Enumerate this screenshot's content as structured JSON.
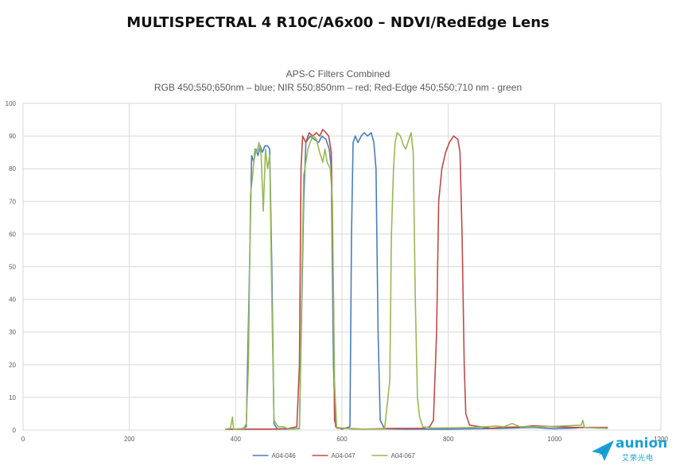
{
  "header": {
    "title": "MULTISPECTRAL 4 R10C/A6x00 – NDVI/RedEdge Lens"
  },
  "logo": {
    "word": "aunion",
    "sub": "艾荣光电",
    "color": "#1aa0d6"
  },
  "chart_data": {
    "type": "line",
    "title": "APS-C Filters Combined",
    "subtitle": "RGB 450;550;650nm – blue; NIR 550;850nm – red; Red-Edge 450;550;710 nm - green",
    "xlabel": "",
    "ylabel": "",
    "xlim": [
      0,
      1200
    ],
    "ylim": [
      0,
      100
    ],
    "x_ticks": [
      0,
      200,
      400,
      600,
      800,
      1000,
      1200
    ],
    "y_ticks": [
      0,
      10,
      20,
      30,
      40,
      50,
      60,
      70,
      80,
      90,
      100
    ],
    "grid": true,
    "legend_position": "bottom",
    "series": [
      {
        "name": "A04-046",
        "color": "#4a7ebb",
        "points": [
          [
            380,
            0.3
          ],
          [
            410,
            0.3
          ],
          [
            420,
            1
          ],
          [
            425,
            40
          ],
          [
            430,
            84
          ],
          [
            434,
            82
          ],
          [
            438,
            86
          ],
          [
            442,
            84
          ],
          [
            446,
            87
          ],
          [
            450,
            85
          ],
          [
            455,
            87
          ],
          [
            460,
            87
          ],
          [
            464,
            86
          ],
          [
            468,
            50
          ],
          [
            472,
            2
          ],
          [
            478,
            0.4
          ],
          [
            500,
            0.3
          ],
          [
            520,
            0.5
          ],
          [
            528,
            70
          ],
          [
            532,
            88
          ],
          [
            540,
            90
          ],
          [
            548,
            89
          ],
          [
            556,
            88
          ],
          [
            562,
            90
          ],
          [
            570,
            89
          ],
          [
            576,
            86
          ],
          [
            580,
            80
          ],
          [
            584,
            20
          ],
          [
            588,
            1
          ],
          [
            600,
            0.3
          ],
          [
            615,
            1
          ],
          [
            618,
            60
          ],
          [
            621,
            88
          ],
          [
            625,
            90
          ],
          [
            630,
            88
          ],
          [
            636,
            90
          ],
          [
            642,
            91
          ],
          [
            648,
            90
          ],
          [
            655,
            91
          ],
          [
            660,
            88
          ],
          [
            664,
            80
          ],
          [
            668,
            30
          ],
          [
            672,
            3
          ],
          [
            680,
            0.4
          ],
          [
            720,
            0.3
          ],
          [
            800,
            0.3
          ],
          [
            900,
            0.5
          ],
          [
            960,
            0.8
          ],
          [
            1000,
            0.4
          ],
          [
            1040,
            0.6
          ],
          [
            1050,
            0.8
          ],
          [
            1100,
            0.5
          ]
        ]
      },
      {
        "name": "A04-047",
        "color": "#be4b48",
        "points": [
          [
            380,
            0.3
          ],
          [
            480,
            0.3
          ],
          [
            500,
            0.5
          ],
          [
            515,
            1
          ],
          [
            520,
            20
          ],
          [
            523,
            80
          ],
          [
            526,
            90
          ],
          [
            532,
            88
          ],
          [
            538,
            91
          ],
          [
            545,
            90
          ],
          [
            552,
            91
          ],
          [
            558,
            90
          ],
          [
            564,
            92
          ],
          [
            570,
            91
          ],
          [
            575,
            90
          ],
          [
            580,
            85
          ],
          [
            584,
            40
          ],
          [
            586,
            3
          ],
          [
            590,
            0.6
          ],
          [
            640,
            0.3
          ],
          [
            700,
            0.5
          ],
          [
            750,
            0.5
          ],
          [
            765,
            1
          ],
          [
            772,
            3
          ],
          [
            778,
            30
          ],
          [
            782,
            70
          ],
          [
            788,
            80
          ],
          [
            795,
            85
          ],
          [
            802,
            88
          ],
          [
            810,
            90
          ],
          [
            818,
            89
          ],
          [
            822,
            85
          ],
          [
            826,
            60
          ],
          [
            830,
            20
          ],
          [
            833,
            5
          ],
          [
            840,
            1.5
          ],
          [
            860,
            1
          ],
          [
            880,
            0.5
          ],
          [
            900,
            0.8
          ],
          [
            940,
            1
          ],
          [
            960,
            1.3
          ],
          [
            1000,
            1
          ],
          [
            1040,
            0.8
          ],
          [
            1080,
            0.8
          ],
          [
            1100,
            0.8
          ]
        ]
      },
      {
        "name": "A04-067",
        "color": "#98b954",
        "points": [
          [
            380,
            0.3
          ],
          [
            390,
            0.5
          ],
          [
            394,
            4
          ],
          [
            396,
            0.3
          ],
          [
            415,
            0.5
          ],
          [
            420,
            2
          ],
          [
            424,
            20
          ],
          [
            428,
            72
          ],
          [
            432,
            78
          ],
          [
            436,
            86
          ],
          [
            440,
            85
          ],
          [
            444,
            88
          ],
          [
            448,
            84
          ],
          [
            452,
            67
          ],
          [
            456,
            86
          ],
          [
            460,
            80
          ],
          [
            464,
            84
          ],
          [
            468,
            40
          ],
          [
            472,
            3
          ],
          [
            480,
            1
          ],
          [
            490,
            1
          ],
          [
            500,
            0.3
          ],
          [
            520,
            0.4
          ],
          [
            524,
            40
          ],
          [
            528,
            78
          ],
          [
            532,
            82
          ],
          [
            536,
            86
          ],
          [
            540,
            88
          ],
          [
            546,
            90
          ],
          [
            552,
            89
          ],
          [
            558,
            85
          ],
          [
            564,
            82
          ],
          [
            568,
            86
          ],
          [
            572,
            82
          ],
          [
            578,
            80
          ],
          [
            582,
            70
          ],
          [
            586,
            15
          ],
          [
            590,
            0.8
          ],
          [
            620,
            0.3
          ],
          [
            680,
            0.3
          ],
          [
            690,
            15
          ],
          [
            693,
            60
          ],
          [
            697,
            80
          ],
          [
            700,
            88
          ],
          [
            704,
            91
          ],
          [
            710,
            90
          ],
          [
            716,
            87
          ],
          [
            720,
            86
          ],
          [
            726,
            89
          ],
          [
            730,
            91
          ],
          [
            734,
            85
          ],
          [
            738,
            40
          ],
          [
            742,
            10
          ],
          [
            746,
            4
          ],
          [
            752,
            1
          ],
          [
            770,
            0.6
          ],
          [
            850,
            0.8
          ],
          [
            890,
            1.2
          ],
          [
            905,
            1
          ],
          [
            920,
            2
          ],
          [
            935,
            1
          ],
          [
            980,
            1
          ],
          [
            1050,
            1.5
          ],
          [
            1053,
            3
          ],
          [
            1056,
            0.8
          ],
          [
            1100,
            0.5
          ]
        ]
      }
    ]
  }
}
